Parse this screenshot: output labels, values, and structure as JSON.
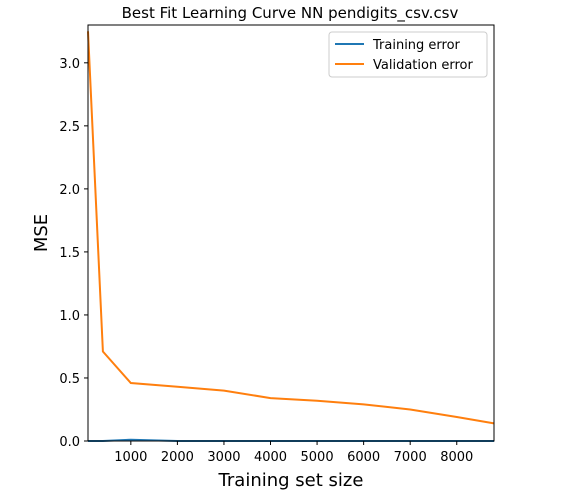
{
  "chart_data": {
    "type": "line",
    "title": "Best Fit Learning Curve NN pendigits_csv.csv",
    "xlabel": "Training set size",
    "ylabel": "MSE",
    "xlim": [
      80,
      8800
    ],
    "ylim": [
      0,
      3.3
    ],
    "xticks": [
      1000,
      2000,
      3000,
      4000,
      5000,
      6000,
      7000,
      8000
    ],
    "yticks": [
      0.0,
      0.5,
      1.0,
      1.5,
      2.0,
      2.5,
      3.0
    ],
    "xtick_labels": [
      "1000",
      "2000",
      "3000",
      "4000",
      "5000",
      "6000",
      "7000",
      "8000"
    ],
    "ytick_labels": [
      "0.0",
      "0.5",
      "1.0",
      "1.5",
      "2.0",
      "2.5",
      "3.0"
    ],
    "grid": false,
    "legend_position": "top-right",
    "series": [
      {
        "name": "Training error",
        "color": "#1f77b4",
        "x": [
          80,
          400,
          1000,
          2000,
          3000,
          4000,
          5000,
          6000,
          7000,
          8000,
          8800
        ],
        "y": [
          0.0,
          0.0,
          0.01,
          0.0,
          0.0,
          0.0,
          0.0,
          0.0,
          0.0,
          0.0,
          0.0
        ]
      },
      {
        "name": "Validation error",
        "color": "#ff7f0e",
        "x": [
          80,
          400,
          1000,
          2000,
          3000,
          4000,
          5000,
          6000,
          7000,
          8000,
          8800
        ],
        "y": [
          3.25,
          0.71,
          0.46,
          0.43,
          0.4,
          0.34,
          0.32,
          0.29,
          0.25,
          0.19,
          0.14
        ]
      }
    ]
  }
}
